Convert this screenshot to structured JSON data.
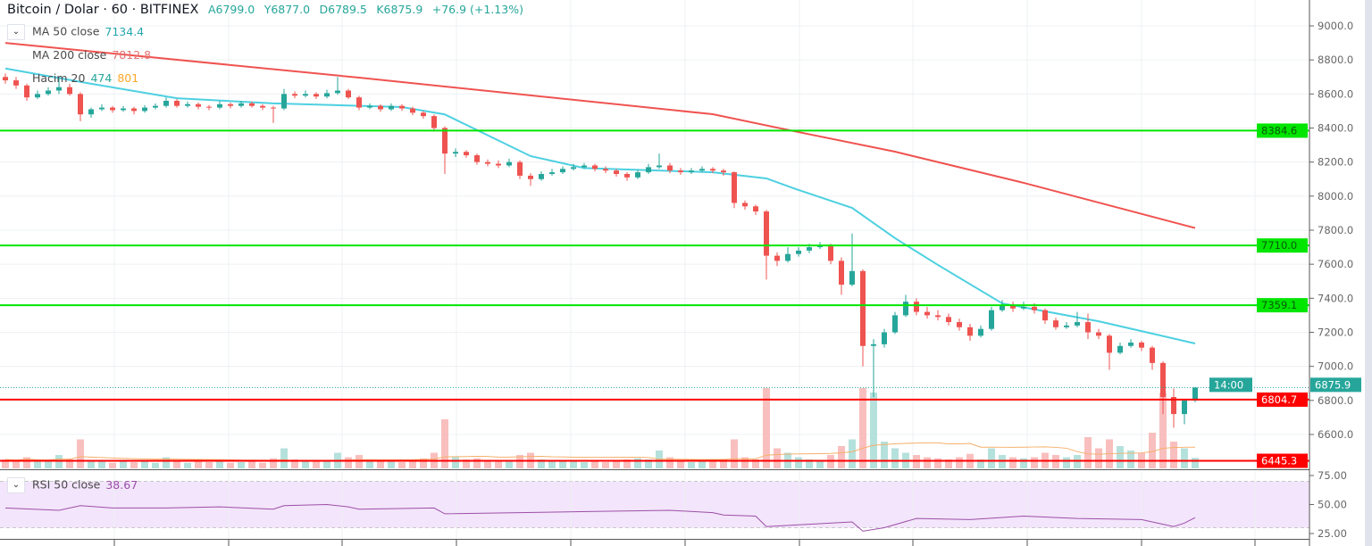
{
  "header": {
    "symbol": "Bitcoin / Dolar · 60 · BITFINEX",
    "open": "A6799.0",
    "high": "Y6877.0",
    "low": "D6789.5",
    "close": "K6875.9",
    "change": "+76.9 (+1.13%)"
  },
  "legends": {
    "ma50": {
      "label": "MA 50 close",
      "value": "7134.4",
      "color": "#4dd0e1"
    },
    "ma200": {
      "label": "MA 200 close",
      "value": "7812.8",
      "color": "#ef5350"
    },
    "volume": {
      "label": "Hacim 20",
      "value": "474",
      "ma_value": "801",
      "value_color": "#26a69a",
      "ma_color": "#ff9800"
    },
    "rsi": {
      "label": "RSI 50 close",
      "value": "38.67",
      "color": "#9c27b0"
    }
  },
  "colors": {
    "up": "#26a69a",
    "down": "#ef5350",
    "support_green": "#00e600",
    "support_red": "#ff0000",
    "rsi_bg": "#f3e5fb"
  },
  "chart_data": {
    "type": "candlestick",
    "title": "Bitcoin / Dolar · 60 · BITFINEX",
    "ylim": [
      6450,
      9080
    ],
    "price_ticks": [
      "9000.0",
      "8800.0",
      "8600.0",
      "8400.0",
      "8200.0",
      "8000.0",
      "7800.0",
      "7600.0",
      "7400.0",
      "7200.0",
      "7000.0",
      "6800.0",
      "6600.0"
    ],
    "rsi_ticks": [
      "75.00",
      "50.00",
      "25.00"
    ],
    "grid": true,
    "candles_ohlc": [
      [
        8700,
        8720,
        8660,
        8680
      ],
      [
        8680,
        8700,
        8630,
        8650
      ],
      [
        8650,
        8660,
        8560,
        8580
      ],
      [
        8580,
        8620,
        8570,
        8600
      ],
      [
        8600,
        8640,
        8590,
        8620
      ],
      [
        8620,
        8700,
        8600,
        8640
      ],
      [
        8640,
        8660,
        8590,
        8600
      ],
      [
        8600,
        8610,
        8440,
        8480
      ],
      [
        8480,
        8520,
        8460,
        8510
      ],
      [
        8510,
        8540,
        8500,
        8520
      ],
      [
        8520,
        8530,
        8490,
        8505
      ],
      [
        8505,
        8530,
        8495,
        8515
      ],
      [
        8515,
        8525,
        8480,
        8500
      ],
      [
        8500,
        8535,
        8490,
        8520
      ],
      [
        8520,
        8545,
        8510,
        8530
      ],
      [
        8530,
        8580,
        8520,
        8560
      ],
      [
        8560,
        8570,
        8520,
        8530
      ],
      [
        8530,
        8555,
        8520,
        8540
      ],
      [
        8540,
        8550,
        8510,
        8525
      ],
      [
        8525,
        8535,
        8505,
        8520
      ],
      [
        8520,
        8560,
        8510,
        8540
      ],
      [
        8540,
        8550,
        8515,
        8530
      ],
      [
        8530,
        8560,
        8520,
        8545
      ],
      [
        8545,
        8555,
        8520,
        8530
      ],
      [
        8530,
        8540,
        8505,
        8520
      ],
      [
        8520,
        8530,
        8430,
        8515
      ],
      [
        8515,
        8630,
        8505,
        8600
      ],
      [
        8600,
        8615,
        8575,
        8590
      ],
      [
        8590,
        8620,
        8580,
        8600
      ],
      [
        8600,
        8610,
        8570,
        8585
      ],
      [
        8585,
        8625,
        8575,
        8605
      ],
      [
        8605,
        8700,
        8595,
        8620
      ],
      [
        8620,
        8630,
        8570,
        8580
      ],
      [
        8580,
        8590,
        8505,
        8520
      ],
      [
        8520,
        8545,
        8510,
        8530
      ],
      [
        8530,
        8540,
        8495,
        8510
      ],
      [
        8510,
        8545,
        8500,
        8530
      ],
      [
        8530,
        8540,
        8500,
        8515
      ],
      [
        8515,
        8525,
        8475,
        8490
      ],
      [
        8490,
        8500,
        8455,
        8470
      ],
      [
        8470,
        8480,
        8380,
        8400
      ],
      [
        8400,
        8410,
        8130,
        8250
      ],
      [
        8250,
        8280,
        8230,
        8260
      ],
      [
        8260,
        8270,
        8225,
        8240
      ],
      [
        8240,
        8250,
        8185,
        8200
      ],
      [
        8200,
        8215,
        8175,
        8190
      ],
      [
        8190,
        8210,
        8165,
        8180
      ],
      [
        8180,
        8220,
        8170,
        8200
      ],
      [
        8200,
        8210,
        8100,
        8120
      ],
      [
        8120,
        8135,
        8060,
        8100
      ],
      [
        8100,
        8145,
        8090,
        8130
      ],
      [
        8130,
        8160,
        8120,
        8140
      ],
      [
        8140,
        8175,
        8130,
        8160
      ],
      [
        8160,
        8190,
        8150,
        8170
      ],
      [
        8170,
        8195,
        8160,
        8180
      ],
      [
        8180,
        8190,
        8145,
        8160
      ],
      [
        8160,
        8175,
        8135,
        8150
      ],
      [
        8150,
        8160,
        8115,
        8130
      ],
      [
        8130,
        8140,
        8090,
        8110
      ],
      [
        8110,
        8155,
        8100,
        8140
      ],
      [
        8140,
        8190,
        8130,
        8170
      ],
      [
        8170,
        8250,
        8160,
        8180
      ],
      [
        8180,
        8195,
        8135,
        8150
      ],
      [
        8150,
        8165,
        8125,
        8140
      ],
      [
        8140,
        8165,
        8130,
        8150
      ],
      [
        8150,
        8175,
        8140,
        8160
      ],
      [
        8160,
        8170,
        8135,
        8150
      ],
      [
        8150,
        8160,
        8120,
        8140
      ],
      [
        8140,
        8145,
        7930,
        7960
      ],
      [
        7960,
        7975,
        7920,
        7940
      ],
      [
        7940,
        7950,
        7890,
        7910
      ],
      [
        7910,
        7920,
        7510,
        7650
      ],
      [
        7650,
        7670,
        7590,
        7620
      ],
      [
        7620,
        7700,
        7610,
        7660
      ],
      [
        7660,
        7700,
        7645,
        7680
      ],
      [
        7680,
        7720,
        7665,
        7700
      ],
      [
        7700,
        7730,
        7690,
        7710
      ],
      [
        7710,
        7720,
        7600,
        7620
      ],
      [
        7620,
        7640,
        7420,
        7480
      ],
      [
        7480,
        7780,
        7470,
        7560
      ],
      [
        7560,
        7570,
        7000,
        7120
      ],
      [
        7120,
        7160,
        6820,
        7130
      ],
      [
        7130,
        7220,
        7110,
        7200
      ],
      [
        7200,
        7320,
        7190,
        7300
      ],
      [
        7300,
        7420,
        7290,
        7380
      ],
      [
        7380,
        7400,
        7300,
        7320
      ],
      [
        7320,
        7350,
        7280,
        7300
      ],
      [
        7300,
        7330,
        7270,
        7290
      ],
      [
        7290,
        7310,
        7240,
        7260
      ],
      [
        7260,
        7280,
        7210,
        7230
      ],
      [
        7230,
        7250,
        7150,
        7180
      ],
      [
        7180,
        7240,
        7170,
        7220
      ],
      [
        7220,
        7350,
        7210,
        7330
      ],
      [
        7330,
        7390,
        7320,
        7360
      ],
      [
        7360,
        7380,
        7320,
        7340
      ],
      [
        7340,
        7380,
        7330,
        7350
      ],
      [
        7350,
        7370,
        7310,
        7330
      ],
      [
        7330,
        7340,
        7250,
        7270
      ],
      [
        7270,
        7285,
        7215,
        7230
      ],
      [
        7230,
        7260,
        7220,
        7240
      ],
      [
        7240,
        7320,
        7230,
        7260
      ],
      [
        7260,
        7310,
        7160,
        7200
      ],
      [
        7200,
        7220,
        7160,
        7180
      ],
      [
        7180,
        7190,
        6980,
        7080
      ],
      [
        7080,
        7140,
        7070,
        7120
      ],
      [
        7120,
        7160,
        7110,
        7140
      ],
      [
        7140,
        7150,
        7090,
        7110
      ],
      [
        7110,
        7120,
        6980,
        7020
      ],
      [
        7020,
        7030,
        6720,
        6820
      ],
      [
        6820,
        6870,
        6640,
        6720
      ],
      [
        6720,
        6810,
        6660,
        6799
      ],
      [
        6799,
        6877,
        6789.5,
        6875.9
      ]
    ],
    "volume": [
      400,
      350,
      500,
      300,
      350,
      600,
      400,
      1300,
      350,
      300,
      250,
      300,
      280,
      300,
      250,
      500,
      300,
      250,
      300,
      280,
      300,
      250,
      280,
      300,
      250,
      450,
      900,
      400,
      300,
      350,
      300,
      700,
      500,
      600,
      300,
      350,
      300,
      280,
      400,
      450,
      700,
      2200,
      500,
      400,
      450,
      350,
      300,
      350,
      600,
      700,
      400,
      300,
      350,
      300,
      280,
      300,
      280,
      350,
      400,
      450,
      400,
      800,
      500,
      300,
      280,
      300,
      350,
      400,
      1300,
      500,
      400,
      3600,
      900,
      700,
      500,
      400,
      350,
      600,
      1000,
      1300,
      3600,
      3400,
      1200,
      900,
      700,
      600,
      500,
      450,
      400,
      500,
      650,
      400,
      900,
      600,
      500,
      450,
      500,
      700,
      600,
      500,
      600,
      1400,
      900,
      1300,
      1000,
      800,
      700,
      1600,
      3400,
      1200,
      900,
      474
    ],
    "ma50": [
      [
        0,
        8750
      ],
      [
        8,
        8660
      ],
      [
        16,
        8575
      ],
      [
        25,
        8545
      ],
      [
        37,
        8523
      ],
      [
        41,
        8480
      ],
      [
        49,
        8235
      ],
      [
        54,
        8165
      ],
      [
        66,
        8140
      ],
      [
        71,
        8104
      ],
      [
        74,
        8036
      ],
      [
        79,
        7931
      ],
      [
        83,
        7753
      ],
      [
        87,
        7596
      ],
      [
        93,
        7370
      ],
      [
        102,
        7265
      ],
      [
        111,
        7134.4
      ]
    ],
    "ma200": [
      [
        0,
        8900
      ],
      [
        33,
        8696
      ],
      [
        66,
        8481
      ],
      [
        74,
        8376
      ],
      [
        83,
        8261
      ],
      [
        95,
        8078
      ],
      [
        111,
        7812.8
      ]
    ],
    "rsi": [
      [
        0,
        47
      ],
      [
        5,
        45
      ],
      [
        7,
        49
      ],
      [
        10,
        47
      ],
      [
        15,
        47
      ],
      [
        20,
        48
      ],
      [
        25,
        46
      ],
      [
        26,
        49
      ],
      [
        30,
        50
      ],
      [
        32,
        48
      ],
      [
        33,
        46
      ],
      [
        40,
        47
      ],
      [
        41,
        42
      ],
      [
        48,
        43
      ],
      [
        55,
        44
      ],
      [
        62,
        45
      ],
      [
        66,
        43
      ],
      [
        67,
        41
      ],
      [
        70,
        40
      ],
      [
        71,
        31
      ],
      [
        75,
        33
      ],
      [
        79,
        35
      ],
      [
        80,
        27
      ],
      [
        82,
        30
      ],
      [
        85,
        38
      ],
      [
        90,
        37
      ],
      [
        95,
        40
      ],
      [
        100,
        38
      ],
      [
        106,
        37
      ],
      [
        108,
        33
      ],
      [
        109,
        31
      ],
      [
        110,
        34
      ],
      [
        111,
        38.67
      ]
    ],
    "horizontal_levels": [
      {
        "value": 8384.6,
        "label": "8384.6",
        "color": "#00e600"
      },
      {
        "value": 7710.0,
        "label": "7710.0",
        "color": "#00e600"
      },
      {
        "value": 7359.1,
        "label": "7359.1",
        "color": "#00e600"
      },
      {
        "value": 6804.7,
        "label": "6804.7",
        "color": "#ff0000"
      },
      {
        "value": 6445.3,
        "label": "6445.3",
        "color": "#ff0000"
      }
    ],
    "last_price": {
      "value": 6875.9,
      "label": "6875.9",
      "countdown": "14:00"
    }
  }
}
